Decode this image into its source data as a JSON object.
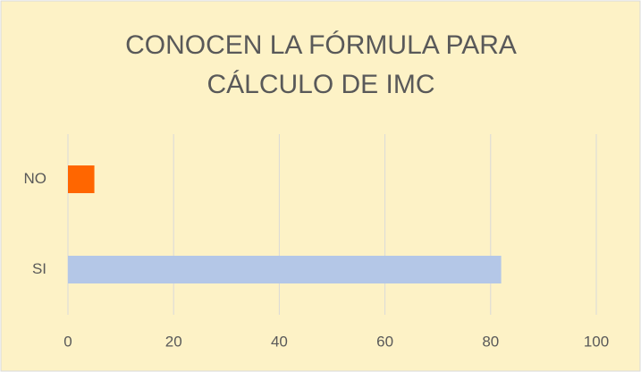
{
  "chart_data": {
    "type": "hbar",
    "title": [
      "CONOCEN LA FÓRMULA PARA",
      "CÁLCULO DE IMC"
    ],
    "categories": [
      "NO",
      "SI"
    ],
    "values": [
      5,
      82
    ],
    "colors": [
      "#ff6600",
      "#b4c7e7"
    ],
    "xlim": [
      0,
      100
    ],
    "xticks": [
      0,
      20,
      40,
      60,
      80,
      100
    ],
    "grid": true
  }
}
